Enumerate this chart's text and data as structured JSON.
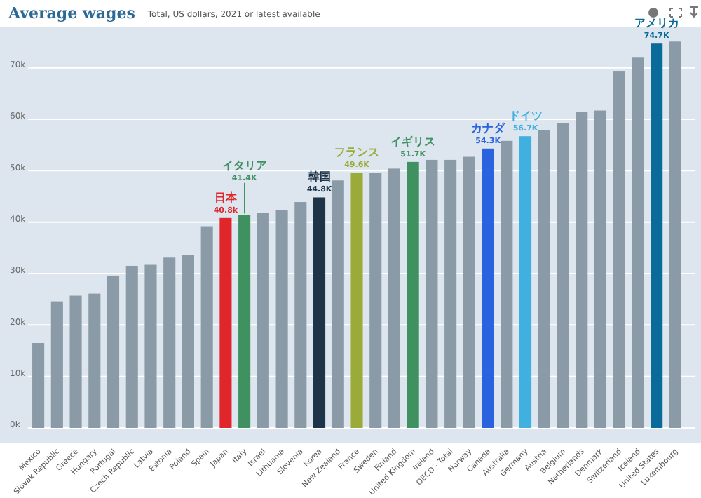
{
  "chart_data": {
    "type": "bar",
    "title": "Average wages",
    "subtitle": "Total, US dollars, 2021 or latest available",
    "categories": [
      "Mexico",
      "Slovak Republic",
      "Greece",
      "Hungary",
      "Portugal",
      "Czech Republic",
      "Latvia",
      "Estonia",
      "Poland",
      "Spain",
      "Japan",
      "Italy",
      "Israel",
      "Lithuania",
      "Slovenia",
      "Korea",
      "New Zealand",
      "France",
      "Sweden",
      "Finland",
      "United Kingdom",
      "Ireland",
      "OECD - Total",
      "Norway",
      "Canada",
      "Australia",
      "Germany",
      "Austria",
      "Belgium",
      "Netherlands",
      "Denmark",
      "Switzerland",
      "Iceland",
      "United States",
      "Luxembourg"
    ],
    "values": [
      16.5,
      24.6,
      25.7,
      26.1,
      29.6,
      31.5,
      31.7,
      33.1,
      33.6,
      39.2,
      40.8,
      41.4,
      41.8,
      42.4,
      43.9,
      44.8,
      48.1,
      49.6,
      49.5,
      50.4,
      51.7,
      52.1,
      52.1,
      52.7,
      54.3,
      55.8,
      56.7,
      57.9,
      59.3,
      61.5,
      61.7,
      69.4,
      72.1,
      74.7,
      75.1
    ],
    "colors": [
      "#8a9aa6",
      "#8a9aa6",
      "#8a9aa6",
      "#8a9aa6",
      "#8a9aa6",
      "#8a9aa6",
      "#8a9aa6",
      "#8a9aa6",
      "#8a9aa6",
      "#8a9aa6",
      "#e0262b",
      "#3f9160",
      "#8a9aa6",
      "#8a9aa6",
      "#8a9aa6",
      "#1e3448",
      "#8a9aa6",
      "#9aab3a",
      "#8a9aa6",
      "#8a9aa6",
      "#3f9160",
      "#8a9aa6",
      "#8a9aa6",
      "#8a9aa6",
      "#2b62e0",
      "#8a9aa6",
      "#3fb0e0",
      "#8a9aa6",
      "#8a9aa6",
      "#8a9aa6",
      "#8a9aa6",
      "#8a9aa6",
      "#8a9aa6",
      "#0a6a9a",
      "#8a9aa6"
    ],
    "value_labels": [
      null,
      null,
      null,
      null,
      null,
      null,
      null,
      null,
      null,
      null,
      "40.8k",
      "41.4K",
      null,
      null,
      null,
      "44.8K",
      null,
      "49.6K",
      null,
      null,
      "51.7K",
      null,
      null,
      null,
      "54.3K",
      null,
      "56.7K",
      null,
      null,
      null,
      null,
      null,
      null,
      "74.7K",
      null
    ],
    "annotations": [
      {
        "text": "日本",
        "x": "Japan",
        "y": 40.8
      },
      {
        "text": "イタリア",
        "x": "Italy",
        "y": 41.4
      },
      {
        "text": "韓国",
        "x": "Korea",
        "y": 44.8
      },
      {
        "text": "フランス",
        "x": "France",
        "y": 49.6
      },
      {
        "text": "イギリス",
        "x": "United Kingdom",
        "y": 51.7
      },
      {
        "text": "カナダ",
        "x": "Canada",
        "y": 54.3
      },
      {
        "text": "ドイツ",
        "x": "Germany",
        "y": 56.7
      },
      {
        "text": "アメリカ",
        "x": "United States",
        "y": 74.7
      }
    ],
    "ylim": [
      -3,
      78
    ],
    "yticks": [
      {
        "value": 0,
        "label": "0k"
      },
      {
        "value": 10,
        "label": "10k"
      },
      {
        "value": 20,
        "label": "20k"
      },
      {
        "value": 30,
        "label": "30k"
      },
      {
        "value": 40,
        "label": "40k"
      },
      {
        "value": 50,
        "label": "50k"
      },
      {
        "value": 60,
        "label": "60k"
      },
      {
        "value": 70,
        "label": "70k"
      }
    ],
    "grid": "y"
  }
}
